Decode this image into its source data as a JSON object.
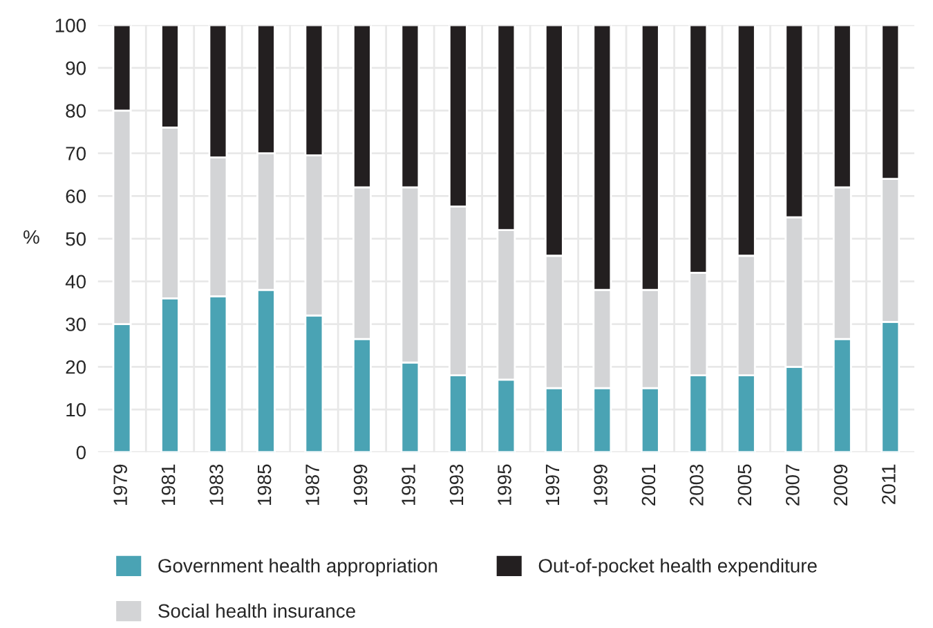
{
  "chart_data": {
    "type": "bar",
    "stacked": true,
    "ylabel": "%",
    "categories": [
      "1979",
      "1981",
      "1983",
      "1985",
      "1987",
      "1999",
      "1991",
      "1993",
      "1995",
      "1997",
      "1999",
      "2001",
      "2003",
      "2005",
      "2007",
      "2009",
      "2011"
    ],
    "series": [
      {
        "name": "Government health appropriation",
        "color": "#4aa3b4",
        "values": [
          30,
          36,
          36.5,
          38,
          32,
          26.5,
          21,
          18,
          17,
          15,
          15,
          15,
          18,
          18,
          20,
          26.5,
          30.5
        ]
      },
      {
        "name": "Social health insurance",
        "color": "#d3d4d6",
        "values": [
          50,
          40,
          32.5,
          32,
          37.5,
          35.5,
          41,
          39.5,
          35,
          31,
          23,
          23,
          24,
          28,
          35,
          35.5,
          33.5
        ]
      },
      {
        "name": "Out-of-pocket health expenditure",
        "color": "#231f20",
        "values": [
          20,
          24,
          31,
          30,
          30.5,
          38,
          38,
          42.5,
          48,
          54,
          62,
          62,
          58,
          54,
          45,
          38,
          36
        ]
      }
    ],
    "ylim": [
      0,
      100
    ],
    "yticks": [
      0,
      10,
      20,
      30,
      40,
      50,
      60,
      70,
      80,
      90,
      100
    ],
    "grid": true,
    "legend": "bottom"
  }
}
